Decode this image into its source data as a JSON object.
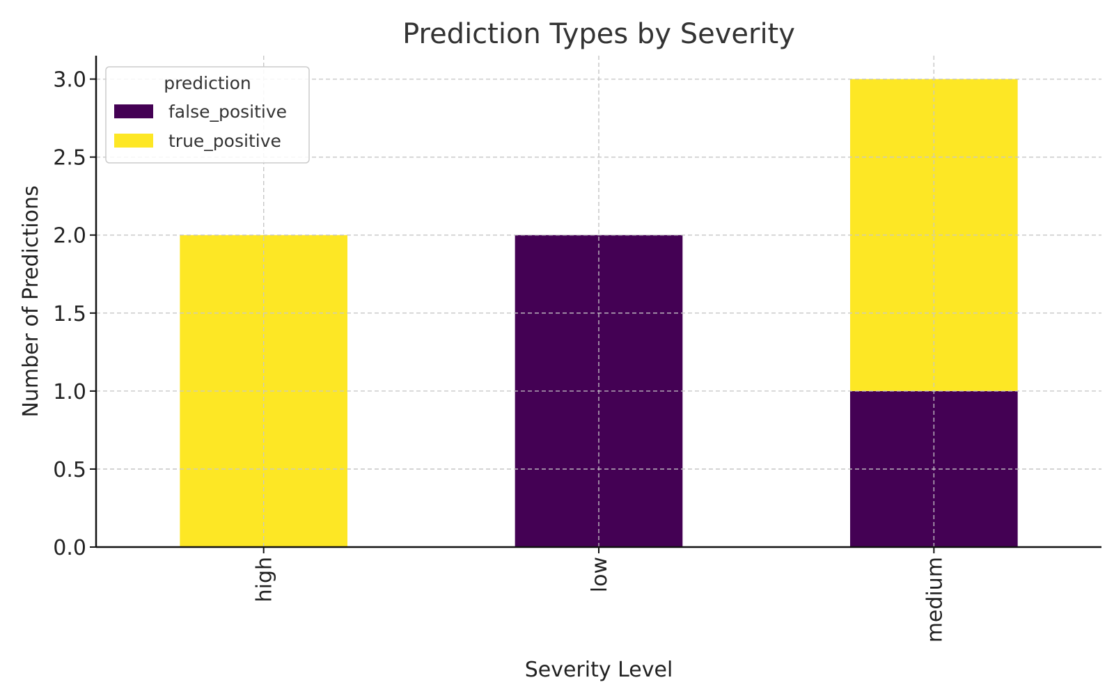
{
  "chart_data": {
    "type": "bar",
    "stacked": true,
    "title": "Prediction Types by Severity",
    "xlabel": "Severity Level",
    "ylabel": "Number of Predictions",
    "categories": [
      "high",
      "low",
      "medium"
    ],
    "series": [
      {
        "name": "false_positive",
        "color": "#440154",
        "values": [
          0,
          2,
          1
        ]
      },
      {
        "name": "true_positive",
        "color": "#fde725",
        "values": [
          2,
          0,
          2
        ]
      }
    ],
    "ylim": [
      0,
      3.15
    ],
    "yticks": [
      "0.0",
      "0.5",
      "1.0",
      "1.5",
      "2.0",
      "2.5",
      "3.0"
    ],
    "grid": true,
    "legend": {
      "title": "prediction",
      "position": "top-left"
    }
  }
}
